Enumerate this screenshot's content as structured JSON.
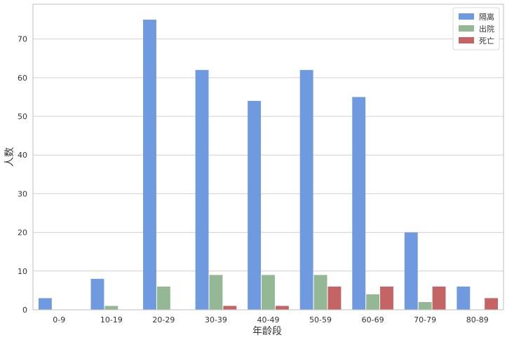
{
  "chart_data": {
    "type": "bar",
    "xlabel": "年龄段",
    "ylabel": "人数",
    "categories": [
      "0-9",
      "10-19",
      "20-29",
      "30-39",
      "40-49",
      "50-59",
      "60-69",
      "70-79",
      "80-89"
    ],
    "series": [
      {
        "name": "隔离",
        "color": "#6f9ae0",
        "values": [
          3,
          8,
          75,
          62,
          54,
          62,
          55,
          20,
          6
        ]
      },
      {
        "name": "出院",
        "color": "#94b894",
        "values": [
          0,
          1,
          6,
          9,
          9,
          9,
          4,
          2,
          0
        ]
      },
      {
        "name": "死亡",
        "color": "#c46464",
        "values": [
          0,
          0,
          0,
          1,
          1,
          6,
          6,
          6,
          3
        ]
      }
    ],
    "ylim": [
      0,
      79
    ],
    "yticks": [
      0,
      10,
      20,
      30,
      40,
      50,
      60,
      70
    ],
    "grid": "horizontal",
    "legend_position": "top-right"
  }
}
